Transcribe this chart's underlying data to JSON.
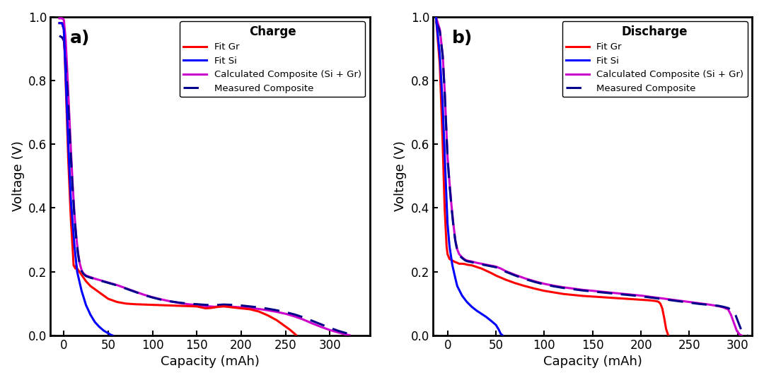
{
  "title_a": "Charge",
  "title_b": "Discharge",
  "label_a": "a)",
  "label_b": "b)",
  "xlabel": "Capacity (mAh)",
  "ylabel": "Voltage (V)",
  "xlim_a": [
    -15,
    345
  ],
  "xlim_b": [
    -15,
    315
  ],
  "ylim": [
    0,
    1.0
  ],
  "yticks": [
    0,
    0.2,
    0.4,
    0.6,
    0.8,
    1.0
  ],
  "legend_labels": [
    "Fit Gr",
    "Fit Si",
    "Calculated Composite (Si + Gr)",
    "Measured Composite"
  ],
  "colors": {
    "fit_gr": "#FF0000",
    "fit_si": "#0000FF",
    "calc_composite": "#CC00CC",
    "meas_composite": "#00008B"
  },
  "fig_bg": "#FFFFFF",
  "axes_bg": "#FFFFFF"
}
